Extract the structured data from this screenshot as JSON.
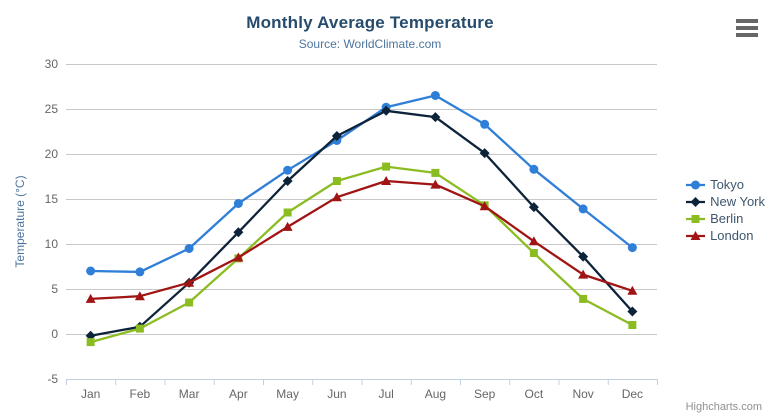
{
  "chart": {
    "title": "Monthly Average Temperature",
    "subtitle": "Source: WorldClimate.com",
    "credits": "Highcharts.com"
  },
  "icons": {
    "export_menu": "hamburger-icon"
  },
  "colors": {
    "title": "#274b6d",
    "subtitle": "#4d759e",
    "axis_labels": "#666666",
    "axis_line": "#c0d0e0",
    "gridline": "#c8c8c8",
    "legend_text": "#3e576f",
    "credits_text": "#909090"
  },
  "chart_data": {
    "type": "line",
    "title": "Monthly Average Temperature",
    "subtitle": "Source: WorldClimate.com",
    "categories": [
      "Jan",
      "Feb",
      "Mar",
      "Apr",
      "May",
      "Jun",
      "Jul",
      "Aug",
      "Sep",
      "Oct",
      "Nov",
      "Dec"
    ],
    "series": [
      {
        "name": "Tokyo",
        "color": "#2f7ed8",
        "marker": "circle",
        "values": [
          7.0,
          6.9,
          9.5,
          14.5,
          18.2,
          21.5,
          25.2,
          26.5,
          23.3,
          18.3,
          13.9,
          9.6
        ]
      },
      {
        "name": "New York",
        "color": "#0d233a",
        "marker": "diamond",
        "values": [
          -0.2,
          0.8,
          5.7,
          11.3,
          17.0,
          22.0,
          24.8,
          24.1,
          20.1,
          14.1,
          8.6,
          2.5
        ]
      },
      {
        "name": "Berlin",
        "color": "#8bbc21",
        "marker": "square",
        "values": [
          -0.9,
          0.6,
          3.5,
          8.4,
          13.5,
          17.0,
          18.6,
          17.9,
          14.3,
          9.0,
          3.9,
          1.0
        ]
      },
      {
        "name": "London",
        "color": "#a01414",
        "marker": "triangle",
        "values": [
          3.9,
          4.2,
          5.7,
          8.5,
          11.9,
          15.2,
          17.0,
          16.6,
          14.2,
          10.3,
          6.6,
          4.8
        ]
      }
    ],
    "xlabel": "",
    "ylabel": "Temperature (°C)",
    "ylim": [
      -5,
      30
    ],
    "ytick_interval": 5,
    "grid": true,
    "legend_position": "right"
  }
}
